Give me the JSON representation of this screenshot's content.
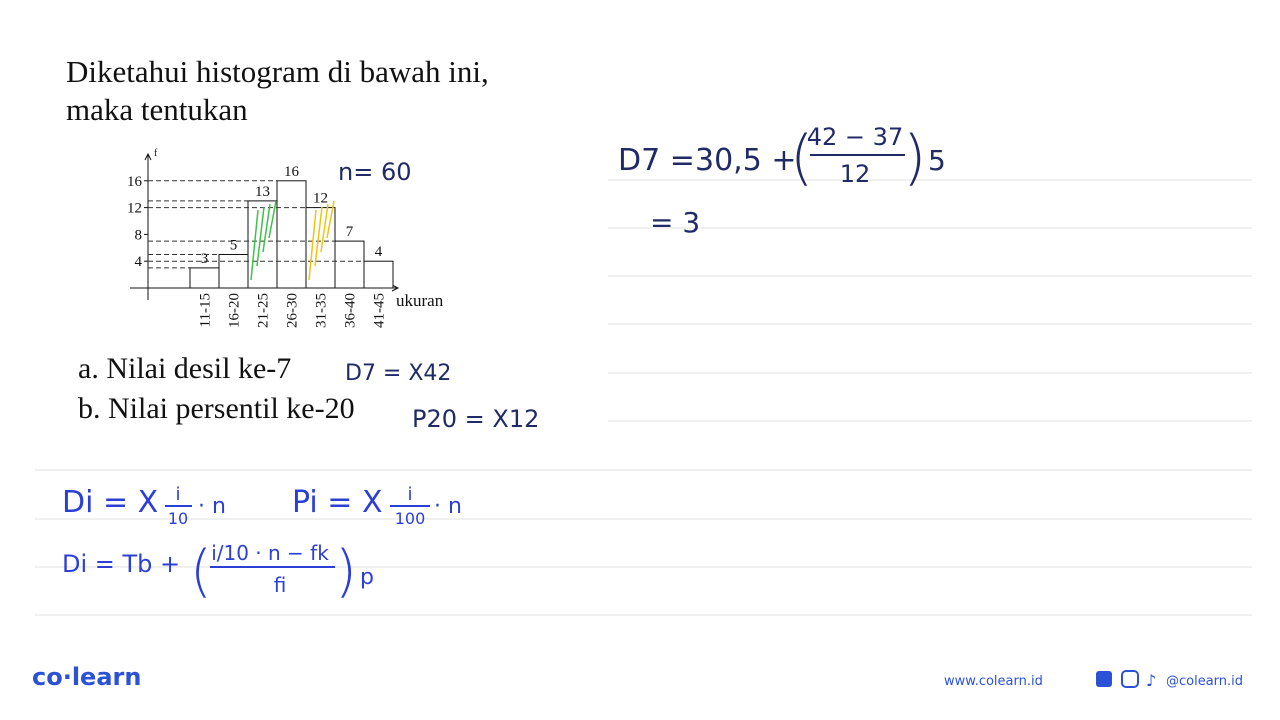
{
  "question": {
    "line1": "Diketahui histogram di bawah ini,",
    "line2": "maka tentukan",
    "a": "a. Nilai desil ke-7",
    "b": "b. Nilai persentil ke-20"
  },
  "chart_data": {
    "type": "bar",
    "categories": [
      "11-15",
      "16-20",
      "21-25",
      "26-30",
      "31-35",
      "36-40",
      "41-45"
    ],
    "values": [
      3,
      5,
      13,
      16,
      12,
      7,
      4
    ],
    "x_label": "ukuran",
    "y_label": "f",
    "ylim": [
      0,
      20
    ],
    "yticks": [
      4,
      8,
      12,
      16
    ],
    "color": "#ffffff"
  },
  "notes": {
    "n": "n= 60",
    "answer_a": "D7 = X42",
    "answer_b": "P20 = X12",
    "d7": {
      "lhs": "D7 =",
      "start": "30,5 +",
      "numerator": "42 − 37",
      "denominator": "12",
      "factor": "5"
    },
    "result": "= 3",
    "decile": {
      "lhs": "Di = X",
      "numerator": "i",
      "denominator": "10",
      "tail": "· n"
    },
    "percentile": {
      "lhs": "Pi = X",
      "numerator": "i",
      "denominator": "100",
      "tail": "· n"
    },
    "formula": {
      "lhs": "Di = Tb +",
      "numerator": "i/10 · n − fk",
      "denominator": "fi",
      "tail": "p"
    }
  },
  "footer": {
    "brand": "co·learn",
    "site": "www.colearn.id",
    "social": "@colearn.id"
  }
}
